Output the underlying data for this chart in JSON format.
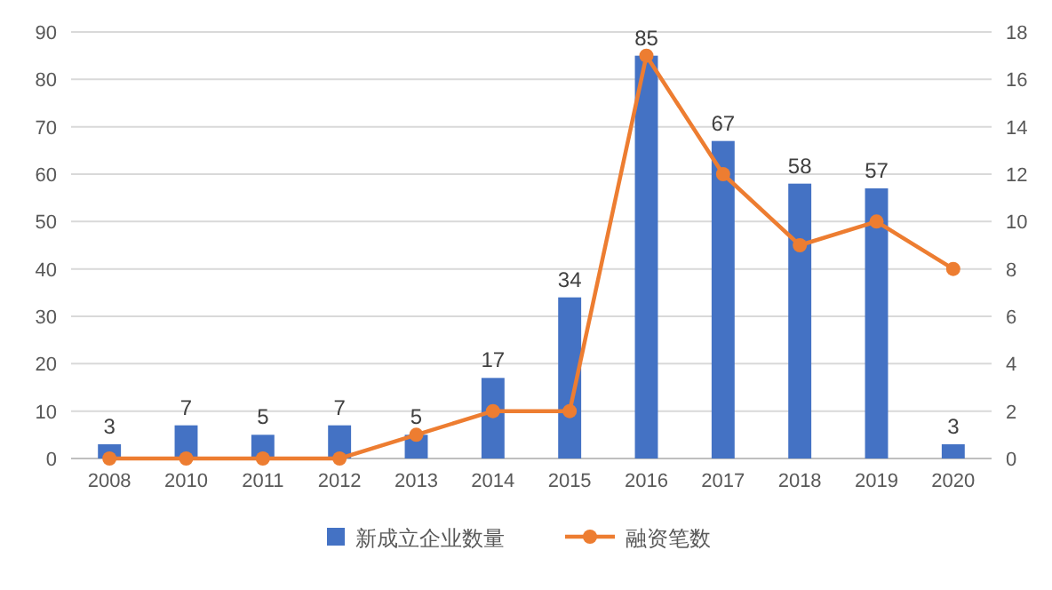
{
  "chart_data": {
    "type": "bar",
    "categories": [
      "2008",
      "2010",
      "2011",
      "2012",
      "2013",
      "2014",
      "2015",
      "2016",
      "2017",
      "2018",
      "2019",
      "2020"
    ],
    "series": [
      {
        "name": "新成立企业数量",
        "color": "#4472c4",
        "values": [
          3,
          7,
          5,
          7,
          5,
          17,
          34,
          85,
          67,
          58,
          57,
          3
        ],
        "value_labels": [
          "3",
          "7",
          "5",
          "7",
          "5",
          "17",
          "34",
          "85",
          "67",
          "58",
          "57",
          "3"
        ]
      },
      {
        "name": "融资笔数",
        "type": "line",
        "axis": "y2",
        "color": "#ed7d31",
        "marker": "circle",
        "values": [
          0,
          0,
          0,
          0,
          1,
          2,
          2,
          17,
          12,
          9,
          10,
          8
        ]
      }
    ],
    "ylim": [
      0,
      90
    ],
    "yticks": [
      0,
      10,
      20,
      30,
      40,
      50,
      60,
      70,
      80,
      90
    ],
    "y2lim": [
      0,
      18
    ],
    "y2ticks": [
      0,
      2,
      4,
      6,
      8,
      10,
      12,
      14,
      16,
      18
    ],
    "grid": "y",
    "legend": "bottom"
  }
}
